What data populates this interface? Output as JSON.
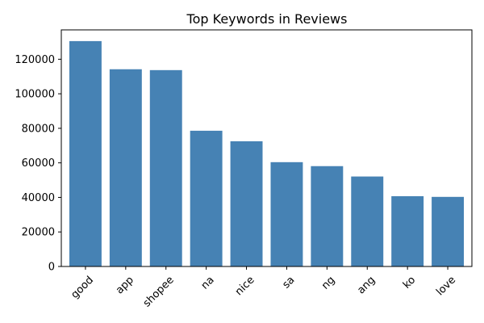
{
  "chart_data": {
    "type": "bar",
    "title": "Top Keywords in Reviews",
    "xlabel": "",
    "ylabel": "",
    "categories": [
      "good",
      "app",
      "shopee",
      "na",
      "nice",
      "sa",
      "ng",
      "ang",
      "ko",
      "love"
    ],
    "values": [
      130500,
      114200,
      113700,
      78600,
      72500,
      60400,
      58100,
      52100,
      40700,
      40300
    ],
    "ylim": [
      0,
      137000
    ],
    "yticks": [
      0,
      20000,
      40000,
      60000,
      80000,
      100000,
      120000
    ],
    "bar_color": "#4682b4",
    "grid": false,
    "legend": "none"
  }
}
